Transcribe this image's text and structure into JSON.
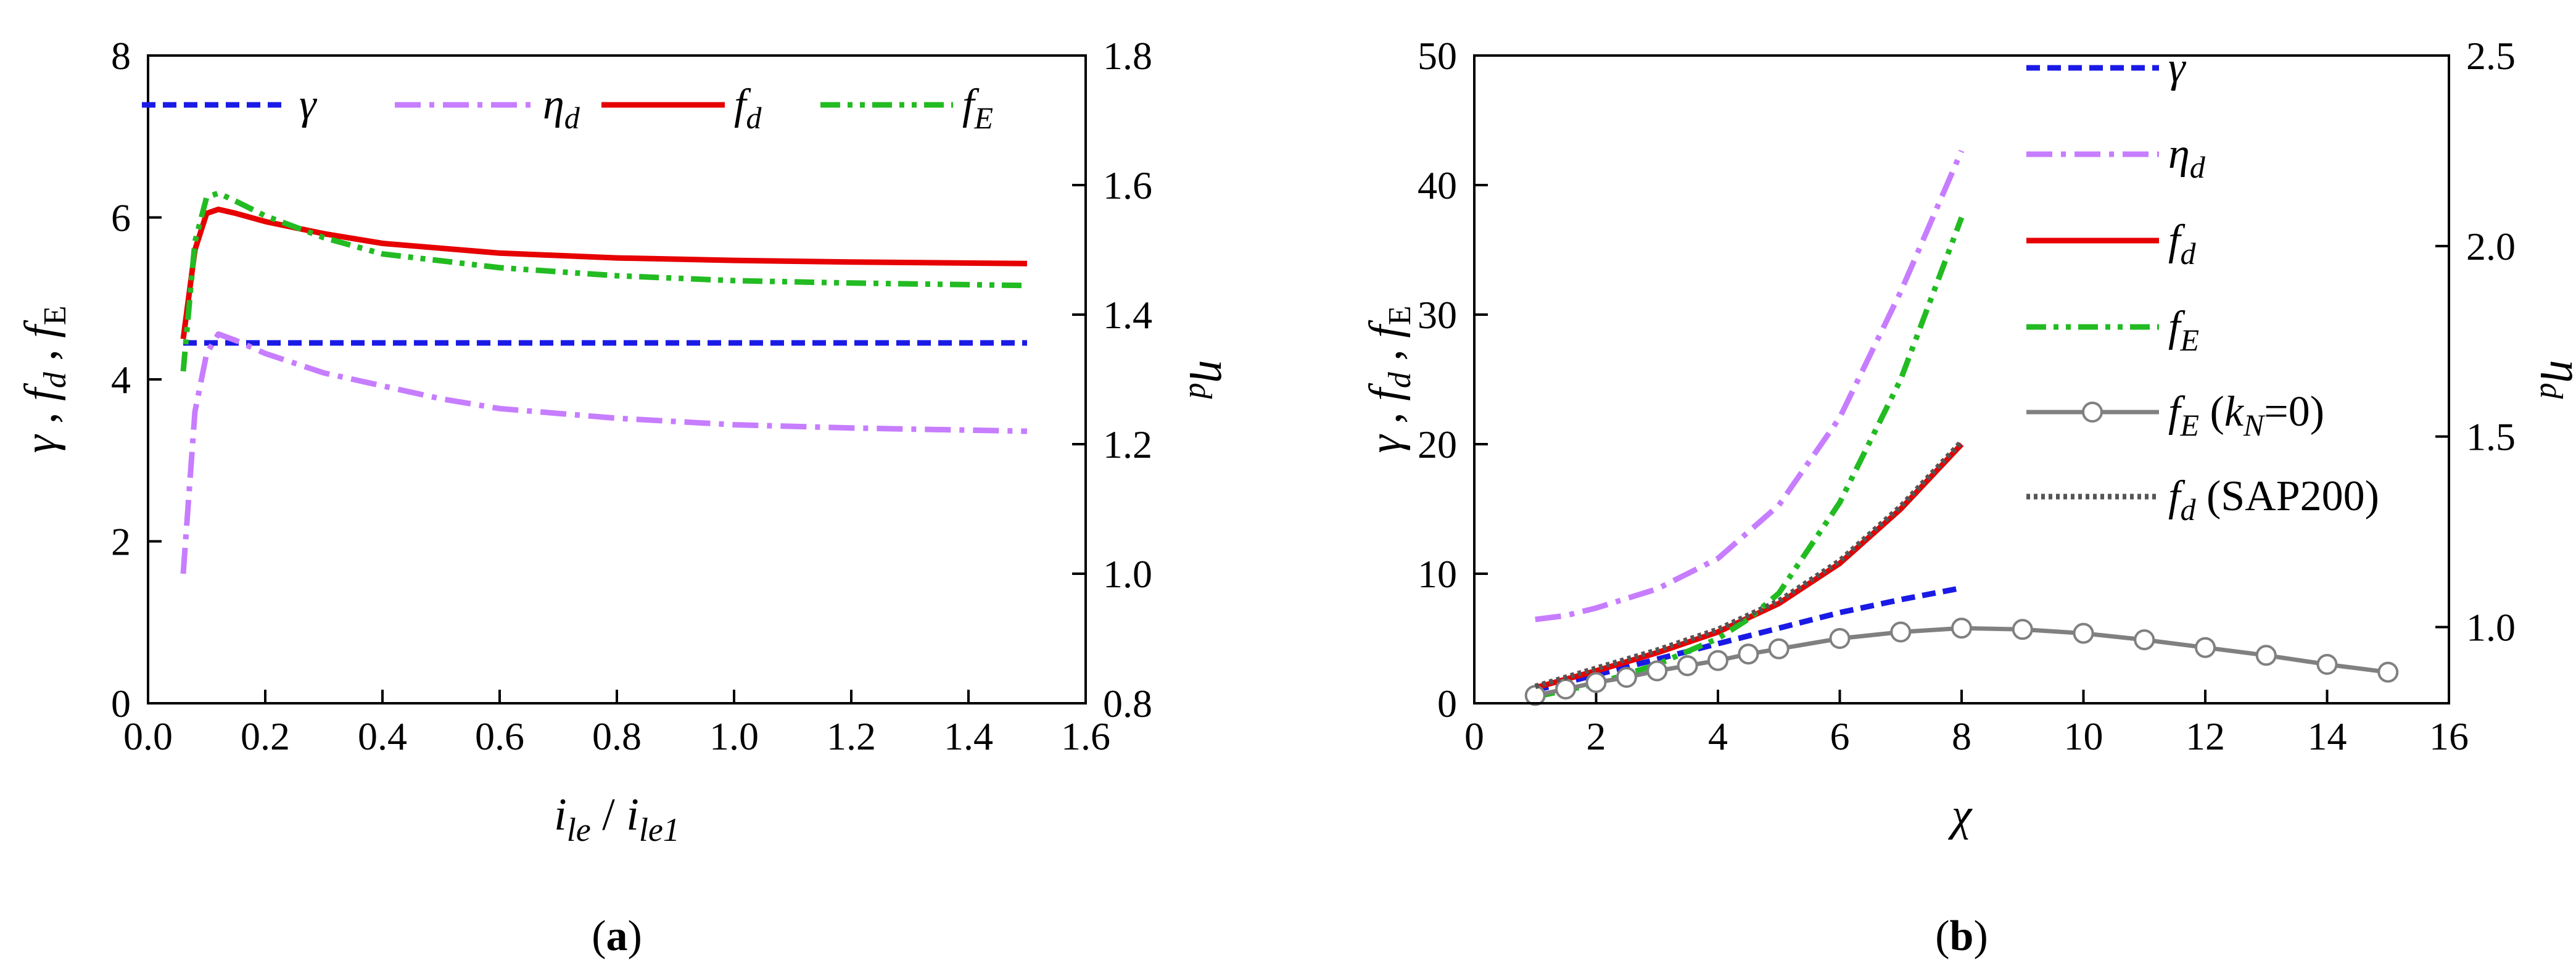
{
  "chart_data": [
    {
      "panel_label": "a",
      "type": "line",
      "xlabel": "i_le / i_le1",
      "ylabel_left": "γ , f_d , f_E",
      "ylabel_right": "η_d",
      "xlim": [
        0.0,
        1.6
      ],
      "ylim_left": [
        0,
        8
      ],
      "ylim_right": [
        0.8,
        1.8
      ],
      "xticks": [
        "0.0",
        "0.2",
        "0.4",
        "0.6",
        "0.8",
        "1.0",
        "1.2",
        "1.4",
        "1.6"
      ],
      "yticks_left": [
        "0",
        "2",
        "4",
        "6",
        "8"
      ],
      "yticks_right": [
        "0.8",
        "1.0",
        "1.2",
        "1.4",
        "1.6",
        "1.8"
      ],
      "legend_position": "top",
      "grid": false,
      "series": [
        {
          "name": "γ",
          "axis": "left",
          "style": "dashed",
          "color": "#1a1ae6",
          "x": [
            0.06,
            0.2,
            0.4,
            0.6,
            0.8,
            1.0,
            1.2,
            1.5
          ],
          "y": [
            4.45,
            4.45,
            4.45,
            4.45,
            4.45,
            4.45,
            4.45,
            4.45
          ]
        },
        {
          "name": "η_d",
          "axis": "right",
          "style": "dashdot",
          "color": "#c77dff",
          "x": [
            0.06,
            0.08,
            0.1,
            0.12,
            0.15,
            0.2,
            0.3,
            0.4,
            0.5,
            0.6,
            0.8,
            1.0,
            1.2,
            1.5
          ],
          "y": [
            1.0,
            1.25,
            1.34,
            1.37,
            1.36,
            1.34,
            1.31,
            1.29,
            1.27,
            1.255,
            1.24,
            1.23,
            1.225,
            1.22
          ]
        },
        {
          "name": "f_d",
          "axis": "left",
          "style": "solid",
          "color": "#e60000",
          "x": [
            0.06,
            0.08,
            0.1,
            0.12,
            0.15,
            0.2,
            0.3,
            0.4,
            0.6,
            0.8,
            1.0,
            1.2,
            1.5
          ],
          "y": [
            4.5,
            5.6,
            6.05,
            6.1,
            6.05,
            5.95,
            5.8,
            5.68,
            5.56,
            5.5,
            5.47,
            5.45,
            5.43
          ]
        },
        {
          "name": "f_E",
          "axis": "left",
          "style": "dashdotdot",
          "color": "#22bb22",
          "x": [
            0.06,
            0.08,
            0.1,
            0.12,
            0.15,
            0.2,
            0.3,
            0.4,
            0.6,
            0.8,
            1.0,
            1.2,
            1.5
          ],
          "y": [
            4.1,
            5.7,
            6.25,
            6.3,
            6.2,
            6.02,
            5.75,
            5.55,
            5.38,
            5.28,
            5.22,
            5.19,
            5.16
          ]
        }
      ]
    },
    {
      "panel_label": "b",
      "type": "line",
      "xlabel": "χ",
      "ylabel_left": "γ , f_d , f_E",
      "ylabel_right": "η_d",
      "xlim": [
        0,
        16
      ],
      "ylim_left": [
        0,
        50
      ],
      "ylim_right": [
        0.8,
        2.5
      ],
      "xticks": [
        "0",
        "2",
        "4",
        "6",
        "8",
        "10",
        "12",
        "14",
        "16"
      ],
      "yticks_left": [
        "0",
        "10",
        "20",
        "30",
        "40",
        "50"
      ],
      "yticks_right": [
        "1.0",
        "1.5",
        "2.0",
        "2.5"
      ],
      "legend_position": "top-right",
      "grid": false,
      "series": [
        {
          "name": "γ",
          "axis": "left",
          "style": "dashed",
          "color": "#1a1ae6",
          "x": [
            1,
            2,
            3,
            4,
            5,
            6,
            7,
            8
          ],
          "y": [
            1.0,
            2.2,
            3.4,
            4.6,
            5.8,
            7.0,
            8.0,
            8.9
          ]
        },
        {
          "name": "η_d",
          "axis": "right",
          "style": "dashdot",
          "color": "#c77dff",
          "x": [
            1,
            1.5,
            2,
            3,
            4,
            5,
            6,
            7,
            8
          ],
          "y": [
            1.02,
            1.03,
            1.05,
            1.1,
            1.18,
            1.32,
            1.55,
            1.88,
            2.25
          ]
        },
        {
          "name": "f_d",
          "axis": "left",
          "style": "solid",
          "color": "#e60000",
          "x": [
            1,
            2,
            3,
            4,
            5,
            6,
            7,
            8
          ],
          "y": [
            1.2,
            2.5,
            3.9,
            5.5,
            7.7,
            10.8,
            15.0,
            20.0
          ]
        },
        {
          "name": "f_E",
          "axis": "left",
          "style": "dashdotdot",
          "color": "#22bb22",
          "x": [
            1,
            2,
            3,
            4,
            4.5,
            5,
            6,
            7,
            8
          ],
          "y": [
            0.5,
            1.5,
            3.0,
            5.0,
            6.5,
            8.5,
            15.5,
            25.0,
            37.5
          ]
        },
        {
          "name": "f_E (k_N=0)",
          "axis": "left",
          "style": "solid-circles",
          "color": "#808080",
          "x": [
            1,
            1.5,
            2,
            2.5,
            3,
            3.5,
            4,
            4.5,
            5,
            6,
            7,
            8,
            9,
            10,
            11,
            12,
            13,
            14,
            15
          ],
          "y": [
            0.6,
            1.1,
            1.6,
            2.0,
            2.5,
            2.9,
            3.3,
            3.8,
            4.2,
            5.0,
            5.5,
            5.8,
            5.7,
            5.4,
            4.9,
            4.3,
            3.7,
            3.0,
            2.4
          ]
        },
        {
          "name": "f_d (SAP200)",
          "axis": "left",
          "style": "dotted",
          "color": "#555555",
          "x": [
            1,
            2,
            3,
            4,
            5,
            6,
            7,
            8
          ],
          "y": [
            1.3,
            2.7,
            4.1,
            5.7,
            7.9,
            11.0,
            15.2,
            20.2
          ]
        }
      ]
    }
  ],
  "legend_a": {
    "gamma": {
      "base": "γ",
      "sub": ""
    },
    "eta": {
      "base": "η",
      "sub": "d"
    },
    "fd": {
      "base": "f",
      "sub": "d"
    },
    "fe": {
      "base": "f",
      "sub": "E"
    }
  },
  "legend_b": {
    "gamma": {
      "base": "γ",
      "sub": ""
    },
    "eta": {
      "base": "η",
      "sub": "d"
    },
    "fd": {
      "base": "f",
      "sub": "d"
    },
    "fe": {
      "base": "f",
      "sub": "E"
    },
    "fe_kn0": {
      "base": "f",
      "sub": "E",
      "paren_open": " (",
      "k": "k",
      "ksub": "N",
      "rest": "=0)"
    },
    "fd_sap": {
      "base": "f",
      "sub": "d",
      "suffix": " (SAP200)"
    }
  },
  "axis_a": {
    "x": {
      "i1": "i",
      "s1": "le",
      "slash": " / ",
      "i2": "i",
      "s2": "le1"
    },
    "yleft": {
      "g": "γ",
      "c1": " , ",
      "f1": "f",
      "s1": "d",
      "c2": " , ",
      "f2": "f",
      "s2": "E"
    },
    "yright": {
      "base": "η",
      "sub": "d"
    }
  },
  "axis_b": {
    "x": "χ",
    "yleft": {
      "g": "γ",
      "c1": " , ",
      "f1": "f",
      "s1": "d",
      "c2": " , ",
      "f2": "f",
      "s2": "E"
    },
    "yright": {
      "base": "η",
      "sub": "d"
    }
  },
  "captions": {
    "a": {
      "open": "(",
      "letter": "a",
      "close": ")"
    },
    "b": {
      "open": "(",
      "letter": "b",
      "close": ")"
    }
  }
}
